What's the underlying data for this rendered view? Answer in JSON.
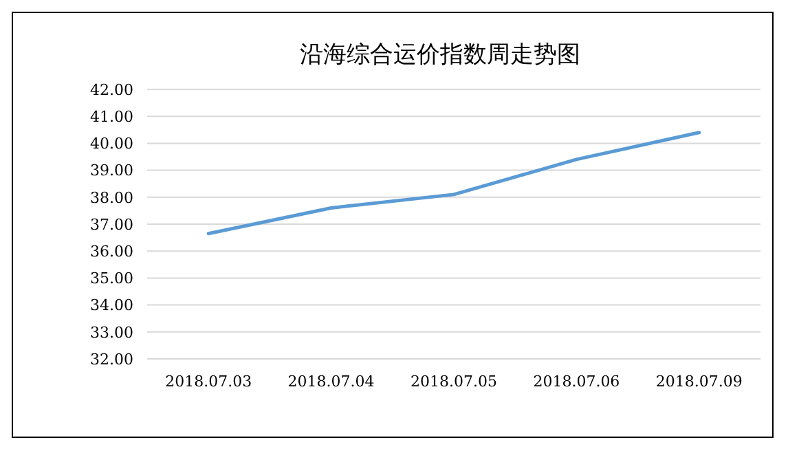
{
  "chart_data": {
    "type": "line",
    "title": "沿海综合运价指数周走势图",
    "categories": [
      "2018.07.03",
      "2018.07.04",
      "2018.07.05",
      "2018.07.06",
      "2018.07.09"
    ],
    "series": [
      {
        "color": "#5b9bd5",
        "values": [
          36.65,
          37.6,
          38.1,
          39.4,
          40.4
        ]
      }
    ],
    "ylim": [
      32,
      42
    ],
    "yticks": [
      {
        "value": 32,
        "label": "32.00"
      },
      {
        "value": 33,
        "label": "33.00"
      },
      {
        "value": 34,
        "label": "34.00"
      },
      {
        "value": 35,
        "label": "35.00"
      },
      {
        "value": 36,
        "label": "36.00"
      },
      {
        "value": 37,
        "label": "37.00"
      },
      {
        "value": 38,
        "label": "38.00"
      },
      {
        "value": 39,
        "label": "39.00"
      },
      {
        "value": 40,
        "label": "40.00"
      },
      {
        "value": 41,
        "label": "41.00"
      },
      {
        "value": 42,
        "label": "42.00"
      }
    ],
    "grid": "y",
    "marker": "none",
    "line_style": "solid"
  }
}
